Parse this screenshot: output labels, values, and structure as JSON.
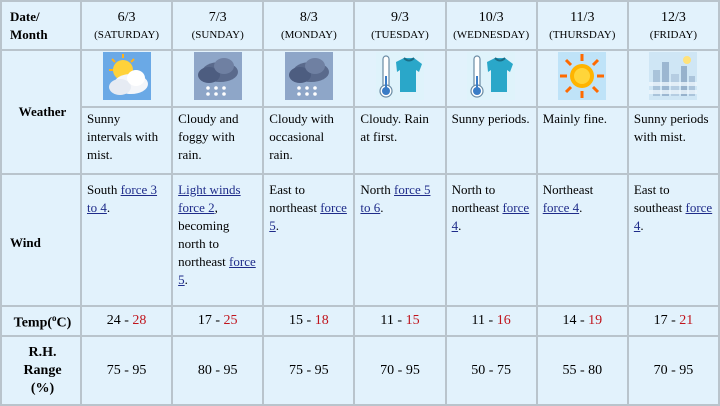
{
  "header": {
    "corner_line1": "Date/",
    "corner_line2": "Month"
  },
  "row_labels": {
    "weather": "Weather",
    "wind": "Wind",
    "temp_prefix": "Temp(",
    "temp_sup": "o",
    "temp_suffix": "C)",
    "rh_line1": "R.H.",
    "rh_line2": "Range",
    "rh_line3": "(%)"
  },
  "days": [
    {
      "date": "6/3",
      "dow": "(SATURDAY)",
      "icon": "sunny-intervals-cloud-icon",
      "weather": "Sunny intervals with mist.",
      "wind_plain": "South ",
      "wind_link": "force 3 to 4",
      "wind_after": ".",
      "wind_link2": "",
      "wind_after2": "",
      "tmin": "24",
      "tmax": "28",
      "rh": "75 - 95"
    },
    {
      "date": "7/3",
      "dow": "(SUNDAY)",
      "icon": "cloudy-rain-icon",
      "weather": "Cloudy and foggy with rain.",
      "wind_plain": "",
      "wind_link": "Light winds force 2",
      "wind_after": ", becoming north to northeast ",
      "wind_link2": "force 5",
      "wind_after2": ".",
      "tmin": "17",
      "tmax": "25",
      "rh": "80 - 95"
    },
    {
      "date": "8/3",
      "dow": "(MONDAY)",
      "icon": "cloudy-rain-icon",
      "weather": "Cloudy with occasional rain.",
      "wind_plain": "East to northeast ",
      "wind_link": "force 5",
      "wind_after": ".",
      "wind_link2": "",
      "wind_after2": "",
      "tmin": "15",
      "tmax": "18",
      "rh": "75 - 95"
    },
    {
      "date": "9/3",
      "dow": "(TUESDAY)",
      "icon": "cold-thermometer-sweater-icon",
      "weather": "Cloudy. Rain at first.",
      "wind_plain": "North ",
      "wind_link": "force 5 to 6",
      "wind_after": ".",
      "wind_link2": "",
      "wind_after2": "",
      "tmin": "11",
      "tmax": "15",
      "rh": "70 - 95"
    },
    {
      "date": "10/3",
      "dow": "(WEDNESDAY)",
      "icon": "cold-thermometer-sweater-icon",
      "weather": "Sunny periods.",
      "wind_plain": "North to northeast ",
      "wind_link": "force 4",
      "wind_after": ".",
      "wind_link2": "",
      "wind_after2": "",
      "tmin": "11",
      "tmax": "16",
      "rh": "50 - 75"
    },
    {
      "date": "11/3",
      "dow": "(THURSDAY)",
      "icon": "sunny-icon",
      "weather": "Mainly fine.",
      "wind_plain": "Northeast ",
      "wind_link": "force 4",
      "wind_after": ".",
      "wind_link2": "",
      "wind_after2": "",
      "tmin": "14",
      "tmax": "19",
      "rh": "55 - 80"
    },
    {
      "date": "12/3",
      "dow": "(FRIDAY)",
      "icon": "mist-city-icon",
      "weather": "Sunny periods with mist.",
      "wind_plain": "East to southeast ",
      "wind_link": "force 4",
      "wind_after": ".",
      "wind_link2": "",
      "wind_after2": "",
      "tmin": "17",
      "tmax": "21",
      "rh": "70 - 95"
    }
  ],
  "temp_separator": " - ",
  "colors": {
    "cell_bg": "#e2f2fc",
    "border": "#b9c4cc",
    "max_temp": "#c0141c",
    "wind_label": "#2fa12f",
    "weather_label": "#2a2f7a",
    "date_label": "#a04aa0"
  }
}
